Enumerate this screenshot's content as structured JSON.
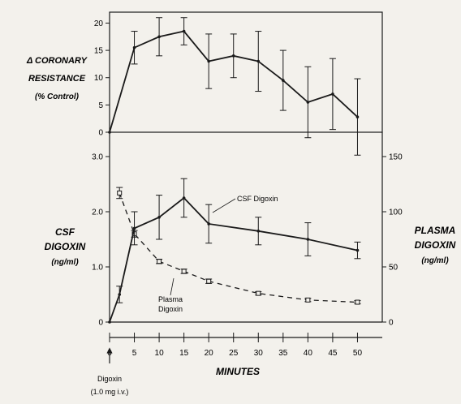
{
  "chart_data": [
    {
      "type": "line",
      "panel": "top",
      "ylabel_lines": [
        "Δ CORONARY",
        "RESISTANCE",
        "(% Control)"
      ],
      "ylim": [
        0,
        22
      ],
      "yticks": [
        0,
        5,
        10,
        15,
        20
      ],
      "baseline": 0,
      "series": [
        {
          "x": [
            0,
            5,
            10,
            15,
            20,
            25,
            30,
            35,
            40,
            45,
            50
          ],
          "y": [
            0,
            15.5,
            17.5,
            18.5,
            13.0,
            14.0,
            13.0,
            9.5,
            5.5,
            7.0,
            2.8
          ],
          "err": [
            0,
            3.0,
            3.5,
            2.5,
            5.0,
            4.0,
            5.5,
            5.5,
            6.5,
            6.5,
            7.0
          ],
          "style": "solid"
        }
      ]
    },
    {
      "type": "line",
      "panel": "bottom",
      "ylabel_left_lines": [
        "CSF",
        "DIGOXIN",
        "(ng/ml)"
      ],
      "ylabel_right_lines": [
        "PLASMA",
        "DIGOXIN",
        "(ng/ml)"
      ],
      "xlabel": "MINUTES",
      "xlim": [
        0,
        55
      ],
      "xticks": [
        0,
        5,
        10,
        15,
        20,
        25,
        30,
        35,
        40,
        45,
        50
      ],
      "ylim_left": [
        0,
        3.0
      ],
      "yticks_left": [
        "0",
        "1.0",
        "2.0",
        "3.0"
      ],
      "ylim_right": [
        0,
        150
      ],
      "yticks_right": [
        "0",
        "50",
        "100",
        "150"
      ],
      "series": [
        {
          "name": "CSF Digoxin",
          "axis": "left",
          "style": "solid",
          "x": [
            0,
            2,
            5,
            10,
            15,
            20,
            30,
            40,
            50
          ],
          "y": [
            0,
            0.5,
            1.7,
            1.9,
            2.25,
            1.78,
            1.65,
            1.5,
            1.3
          ],
          "err": [
            0,
            0.15,
            0.3,
            0.4,
            0.35,
            0.35,
            0.25,
            0.3,
            0.15
          ]
        },
        {
          "name": "Plasma Digoxin",
          "axis": "right",
          "style": "dashed",
          "x": [
            2,
            5,
            10,
            15,
            20,
            30,
            40,
            50
          ],
          "y": [
            117,
            80,
            55,
            46,
            37,
            26,
            20,
            18
          ],
          "err": [
            5,
            3,
            2,
            2,
            2,
            1.5,
            1.5,
            1.5
          ]
        }
      ],
      "annotations": {
        "csf_label": "CSF Digoxin",
        "plasma_label_lines": [
          "Plasma",
          "Digoxin"
        ],
        "dose_label_lines": [
          "Digoxin",
          "(1.0 mg i.v.)"
        ]
      }
    }
  ]
}
